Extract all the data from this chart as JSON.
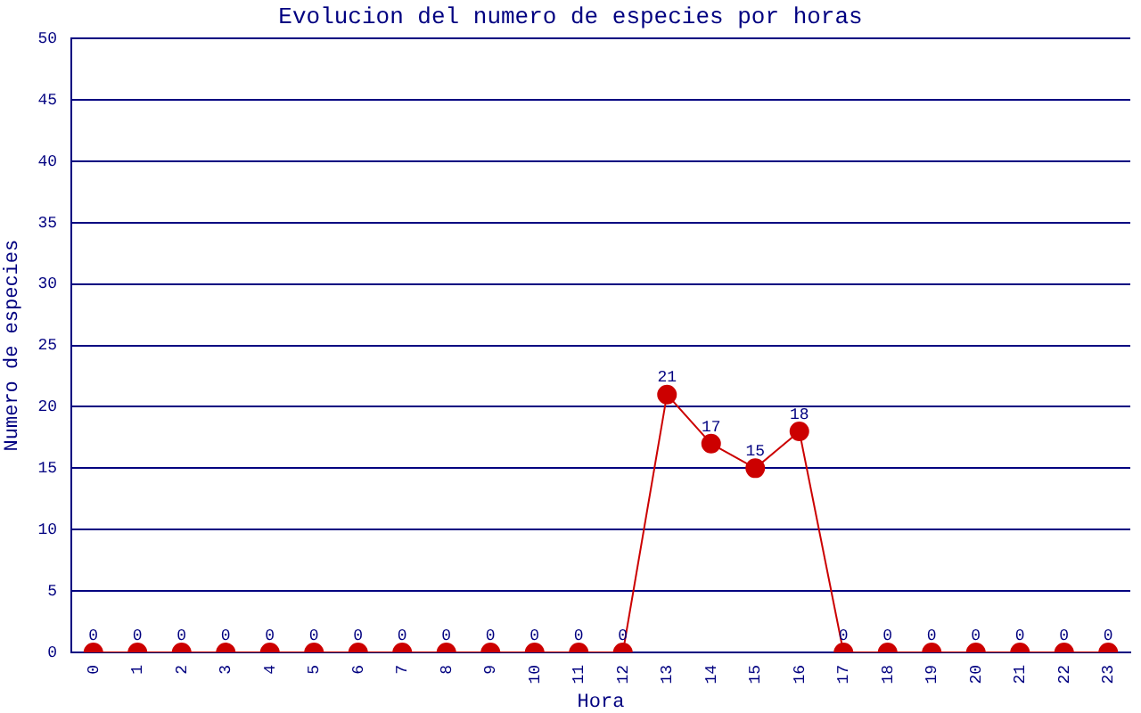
{
  "chart_data": {
    "type": "line",
    "title": "Evolucion del numero de especies por horas",
    "xlabel": "Hora",
    "ylabel": "Numero de especies",
    "categories": [
      "0",
      "1",
      "2",
      "3",
      "4",
      "5",
      "6",
      "7",
      "8",
      "9",
      "10",
      "11",
      "12",
      "13",
      "14",
      "15",
      "16",
      "17",
      "18",
      "19",
      "20",
      "21",
      "22",
      "23"
    ],
    "series": [
      {
        "color": "#cc0000",
        "values": [
          0,
          0,
          0,
          0,
          0,
          0,
          0,
          0,
          0,
          0,
          0,
          0,
          0,
          21,
          17,
          15,
          18,
          0,
          0,
          0,
          0,
          0,
          0,
          0
        ]
      }
    ],
    "ylim": [
      0,
      50
    ],
    "yticks": [
      0,
      5,
      10,
      15,
      20,
      25,
      30,
      35,
      40,
      45,
      50
    ],
    "grid": "y",
    "legend": false,
    "marker": "circle",
    "line_style": "solid",
    "data_labels": true
  }
}
